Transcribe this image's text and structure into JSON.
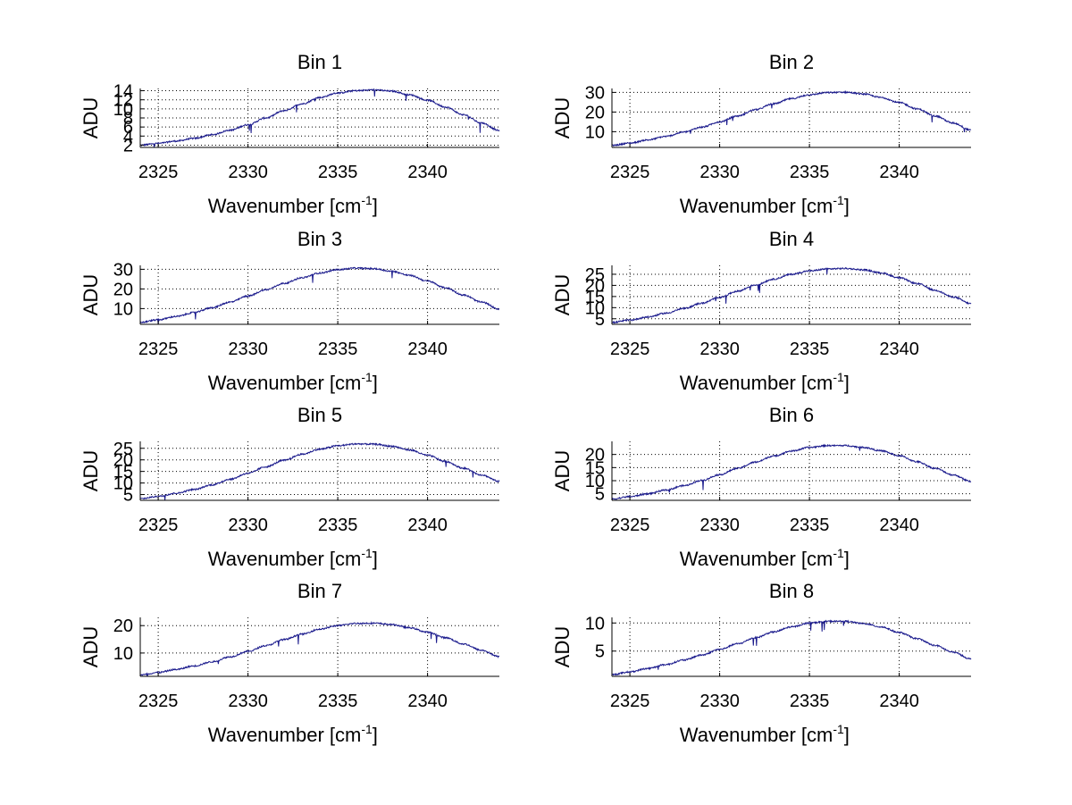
{
  "chart_data": [
    {
      "type": "line",
      "title": "Bin 1",
      "xlabel": "Wavenumber [cm",
      "xlabel_sup": "-1",
      "xlabel_close": "]",
      "ylabel": "ADU",
      "xlim": [
        2324,
        2344
      ],
      "ylim": [
        1.5,
        14.5
      ],
      "xticks": [
        2325,
        2330,
        2335,
        2340
      ],
      "yticks": [
        2,
        4,
        6,
        8,
        10,
        12,
        14
      ],
      "grid": true,
      "line_color": "#1a1a8c",
      "series": [
        {
          "x": [
            2324,
            2325,
            2326,
            2327,
            2328,
            2329,
            2330,
            2331,
            2332,
            2333,
            2334,
            2335,
            2336,
            2337,
            2338,
            2339,
            2340,
            2341,
            2342,
            2343,
            2344
          ],
          "y": [
            2.0,
            2.4,
            2.9,
            3.5,
            4.3,
            5.3,
            6.5,
            8.0,
            9.6,
            11.1,
            12.5,
            13.5,
            14.0,
            14.2,
            13.9,
            13.1,
            11.9,
            10.4,
            8.7,
            6.9,
            5.2
          ]
        }
      ]
    },
    {
      "type": "line",
      "title": "Bin 2",
      "xlabel": "Wavenumber [cm",
      "xlabel_sup": "-1",
      "xlabel_close": "]",
      "ylabel": "ADU",
      "xlim": [
        2324,
        2344
      ],
      "ylim": [
        2,
        32
      ],
      "xticks": [
        2325,
        2330,
        2335,
        2340
      ],
      "yticks": [
        10,
        20,
        30
      ],
      "grid": true,
      "line_color": "#1a1a8c",
      "series": [
        {
          "x": [
            2324,
            2325,
            2326,
            2327,
            2328,
            2329,
            2330,
            2331,
            2332,
            2333,
            2334,
            2335,
            2336,
            2337,
            2338,
            2339,
            2340,
            2341,
            2342,
            2343,
            2344
          ],
          "y": [
            3.0,
            4.2,
            5.8,
            7.6,
            9.8,
            12.3,
            15.0,
            18.0,
            21.2,
            24.2,
            26.8,
            28.8,
            29.9,
            30.1,
            29.2,
            27.4,
            24.8,
            21.6,
            18.0,
            14.4,
            10.8
          ]
        }
      ]
    },
    {
      "type": "line",
      "title": "Bin 3",
      "xlabel": "Wavenumber [cm",
      "xlabel_sup": "-1",
      "xlabel_close": "]",
      "ylabel": "ADU",
      "xlim": [
        2324,
        2344
      ],
      "ylim": [
        2,
        32
      ],
      "xticks": [
        2325,
        2330,
        2335,
        2340
      ],
      "yticks": [
        10,
        20,
        30
      ],
      "grid": true,
      "line_color": "#1a1a8c",
      "series": [
        {
          "x": [
            2324,
            2325,
            2326,
            2327,
            2328,
            2329,
            2330,
            2331,
            2332,
            2333,
            2334,
            2335,
            2336,
            2337,
            2338,
            2339,
            2340,
            2341,
            2342,
            2343,
            2344
          ],
          "y": [
            3.0,
            4.3,
            6.0,
            8.0,
            10.5,
            13.3,
            16.4,
            19.6,
            22.8,
            25.7,
            28.1,
            29.8,
            30.6,
            30.3,
            29.0,
            26.9,
            24.0,
            20.6,
            16.9,
            13.3,
            9.8
          ]
        }
      ]
    },
    {
      "type": "line",
      "title": "Bin 4",
      "xlabel": "Wavenumber [cm",
      "xlabel_sup": "-1",
      "xlabel_close": "]",
      "ylabel": "ADU",
      "xlim": [
        2324,
        2344
      ],
      "ylim": [
        2.5,
        29
      ],
      "xticks": [
        2325,
        2330,
        2335,
        2340
      ],
      "yticks": [
        5,
        10,
        15,
        20,
        25
      ],
      "grid": true,
      "line_color": "#1a1a8c",
      "series": [
        {
          "x": [
            2324,
            2325,
            2326,
            2327,
            2328,
            2329,
            2330,
            2331,
            2332,
            2333,
            2334,
            2335,
            2336,
            2337,
            2338,
            2339,
            2340,
            2341,
            2342,
            2343,
            2344
          ],
          "y": [
            3.3,
            4.4,
            5.8,
            7.5,
            9.6,
            12.0,
            14.6,
            17.4,
            20.2,
            22.8,
            25.0,
            26.5,
            27.4,
            27.6,
            27.0,
            25.6,
            23.4,
            20.8,
            17.8,
            14.8,
            11.8
          ]
        }
      ]
    },
    {
      "type": "line",
      "title": "Bin 5",
      "xlabel": "Wavenumber [cm",
      "xlabel_sup": "-1",
      "xlabel_close": "]",
      "ylabel": "ADU",
      "xlim": [
        2324,
        2344
      ],
      "ylim": [
        2.5,
        28
      ],
      "xticks": [
        2325,
        2330,
        2335,
        2340
      ],
      "yticks": [
        5,
        10,
        15,
        20,
        25
      ],
      "grid": true,
      "line_color": "#1a1a8c",
      "series": [
        {
          "x": [
            2324,
            2325,
            2326,
            2327,
            2328,
            2329,
            2330,
            2331,
            2332,
            2333,
            2334,
            2335,
            2336,
            2337,
            2338,
            2339,
            2340,
            2341,
            2342,
            2343,
            2344
          ],
          "y": [
            3.2,
            4.2,
            5.6,
            7.2,
            9.2,
            11.6,
            14.2,
            17.0,
            19.8,
            22.4,
            24.6,
            26.1,
            26.9,
            26.8,
            25.9,
            24.3,
            22.0,
            19.3,
            16.4,
            13.5,
            10.7
          ]
        }
      ]
    },
    {
      "type": "line",
      "title": "Bin 6",
      "xlabel": "Wavenumber [cm",
      "xlabel_sup": "-1",
      "xlabel_close": "]",
      "ylabel": "ADU",
      "xlim": [
        2324,
        2344
      ],
      "ylim": [
        2.5,
        25
      ],
      "xticks": [
        2325,
        2330,
        2335,
        2340
      ],
      "yticks": [
        5,
        10,
        15,
        20
      ],
      "grid": true,
      "line_color": "#1a1a8c",
      "series": [
        {
          "x": [
            2324,
            2325,
            2326,
            2327,
            2328,
            2329,
            2330,
            2331,
            2332,
            2333,
            2334,
            2335,
            2336,
            2337,
            2338,
            2339,
            2340,
            2341,
            2342,
            2343,
            2344
          ],
          "y": [
            3.0,
            3.9,
            5.0,
            6.4,
            8.1,
            10.1,
            12.3,
            14.7,
            17.1,
            19.4,
            21.3,
            22.7,
            23.4,
            23.4,
            22.7,
            21.4,
            19.5,
            17.2,
            14.7,
            12.2,
            9.7
          ]
        }
      ]
    },
    {
      "type": "line",
      "title": "Bin 7",
      "xlabel": "Wavenumber [cm",
      "xlabel_sup": "-1",
      "xlabel_close": "]",
      "ylabel": "ADU",
      "xlim": [
        2324,
        2344
      ],
      "ylim": [
        1.5,
        23
      ],
      "xticks": [
        2325,
        2330,
        2335,
        2340
      ],
      "yticks": [
        10,
        20
      ],
      "grid": true,
      "line_color": "#1a1a8c",
      "series": [
        {
          "x": [
            2324,
            2325,
            2326,
            2327,
            2328,
            2329,
            2330,
            2331,
            2332,
            2333,
            2334,
            2335,
            2336,
            2337,
            2338,
            2339,
            2340,
            2341,
            2342,
            2343,
            2344
          ],
          "y": [
            2.0,
            2.9,
            4.0,
            5.3,
            6.8,
            8.6,
            10.6,
            12.7,
            14.9,
            16.9,
            18.7,
            20.0,
            20.8,
            20.9,
            20.4,
            19.2,
            17.6,
            15.6,
            13.3,
            11.0,
            8.7
          ]
        }
      ]
    },
    {
      "type": "line",
      "title": "Bin 8",
      "xlabel": "Wavenumber [cm",
      "xlabel_sup": "-1",
      "xlabel_close": "]",
      "ylabel": "ADU",
      "xlim": [
        2324,
        2344
      ],
      "ylim": [
        0.5,
        11
      ],
      "xticks": [
        2325,
        2330,
        2335,
        2340
      ],
      "yticks": [
        5,
        10
      ],
      "grid": true,
      "line_color": "#1a1a8c",
      "series": [
        {
          "x": [
            2324,
            2325,
            2326,
            2327,
            2328,
            2329,
            2330,
            2331,
            2332,
            2333,
            2334,
            2335,
            2336,
            2337,
            2338,
            2339,
            2340,
            2341,
            2342,
            2343,
            2344
          ],
          "y": [
            0.8,
            1.3,
            1.9,
            2.6,
            3.4,
            4.3,
            5.3,
            6.3,
            7.4,
            8.4,
            9.3,
            10.0,
            10.3,
            10.3,
            9.9,
            9.3,
            8.3,
            7.2,
            6.0,
            4.8,
            3.6
          ]
        }
      ]
    }
  ]
}
